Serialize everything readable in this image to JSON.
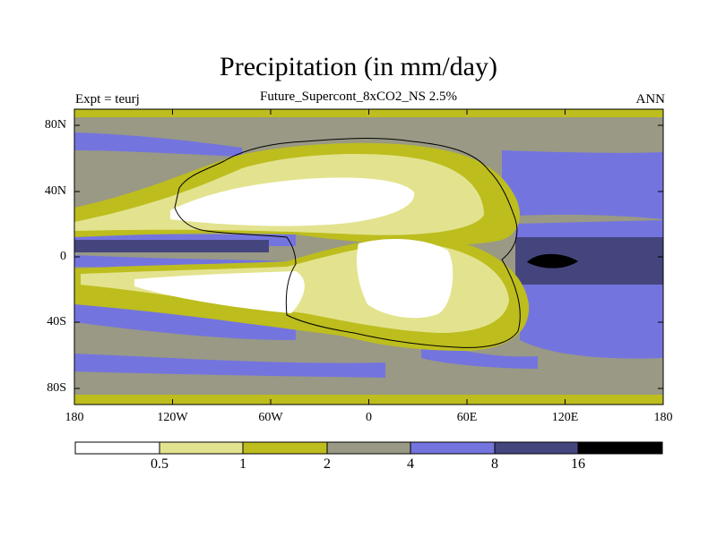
{
  "plot": {
    "title": "Precipitation (in mm/day)",
    "subtitle": "Future_Supercont_8xCO2_NS 2.5%",
    "left_string": "Expt = teurj",
    "right_string": "ANN"
  },
  "axes": {
    "y_ticks": [
      "80N",
      "40N",
      "0",
      "40S",
      "80S"
    ],
    "x_ticks": [
      "180",
      "120W",
      "60W",
      "0",
      "60E",
      "120E",
      "180"
    ]
  },
  "colorbar": {
    "labels": [
      "0.5",
      "1",
      "2",
      "4",
      "8",
      "16"
    ],
    "colors": [
      "#ffffff",
      "#e3e38f",
      "#bdbd1e",
      "#999985",
      "#7474df",
      "#45457e",
      "#000000"
    ]
  }
}
